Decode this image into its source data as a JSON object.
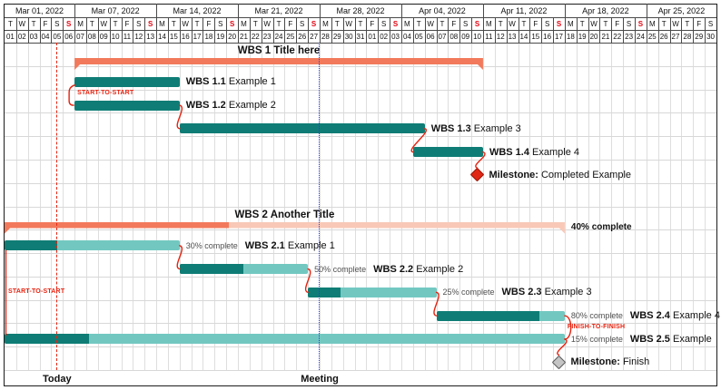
{
  "chart_data": {
    "type": "gantt",
    "timeline": {
      "days": 61,
      "start_date": "Mar 01, 2022",
      "end_date": "Apr 30, 2022",
      "weeks": [
        {
          "label": "Mar 01, 2022",
          "days": 6
        },
        {
          "label": "Mar 07, 2022",
          "days": 7
        },
        {
          "label": "Mar 14, 2022",
          "days": 7
        },
        {
          "label": "Mar 21, 2022",
          "days": 7
        },
        {
          "label": "Mar 28, 2022",
          "days": 7
        },
        {
          "label": "Apr 04, 2022",
          "days": 7
        },
        {
          "label": "Apr 11, 2022",
          "days": 7
        },
        {
          "label": "Apr 18, 2022",
          "days": 7
        },
        {
          "label": "Apr 25, 2022",
          "days": 6
        }
      ],
      "day_letters": [
        "T",
        "W",
        "T",
        "F",
        "S",
        "S",
        "M",
        "T",
        "W",
        "T",
        "F",
        "S",
        "S",
        "M",
        "T",
        "W",
        "T",
        "F",
        "S",
        "S",
        "M",
        "T",
        "W",
        "T",
        "F",
        "S",
        "S",
        "M",
        "T",
        "W",
        "T",
        "F",
        "S",
        "S",
        "M",
        "T",
        "W",
        "T",
        "F",
        "S",
        "S",
        "M",
        "T",
        "W",
        "T",
        "F",
        "S",
        "S",
        "M",
        "T",
        "W",
        "T",
        "F",
        "S",
        "S",
        "M",
        "T",
        "W",
        "T",
        "F",
        "S"
      ],
      "day_numbers": [
        "01",
        "02",
        "03",
        "04",
        "05",
        "06",
        "07",
        "08",
        "09",
        "10",
        "11",
        "12",
        "13",
        "14",
        "15",
        "16",
        "17",
        "18",
        "19",
        "20",
        "21",
        "22",
        "23",
        "24",
        "25",
        "26",
        "27",
        "28",
        "29",
        "30",
        "31",
        "01",
        "02",
        "03",
        "04",
        "05",
        "06",
        "07",
        "08",
        "09",
        "10",
        "11",
        "12",
        "13",
        "14",
        "15",
        "16",
        "17",
        "18",
        "19",
        "20",
        "21",
        "22",
        "23",
        "24",
        "25",
        "26",
        "27",
        "28",
        "29",
        "30"
      ],
      "sunday_indices": [
        5,
        12,
        19,
        26,
        33,
        40,
        47,
        54
      ]
    },
    "markers": {
      "today": {
        "label": "Today",
        "day": 4.5
      },
      "meeting": {
        "label": "Meeting",
        "day": 27
      }
    },
    "rows": [
      {
        "kind": "group",
        "row": 0,
        "name": "wbs-1",
        "title": "WBS 1 Title here",
        "start": 6,
        "end": 41
      },
      {
        "kind": "task",
        "row": 1,
        "name": "wbs-1-1",
        "bold": "WBS 1.1",
        "text": "Example 1",
        "start": 6,
        "end": 15
      },
      {
        "kind": "task",
        "row": 2,
        "name": "wbs-1-2",
        "bold": "WBS 1.2",
        "text": "Example 2",
        "start": 6,
        "end": 15
      },
      {
        "kind": "task",
        "row": 3,
        "name": "wbs-1-3",
        "bold": "WBS 1.3",
        "text": "Example 3",
        "start": 15,
        "end": 36
      },
      {
        "kind": "task",
        "row": 4,
        "name": "wbs-1-4",
        "bold": "WBS 1.4",
        "text": "Example 4",
        "start": 35,
        "end": 41
      },
      {
        "kind": "milestone",
        "row": 5,
        "name": "milestone-completed",
        "bold": "Milestone:",
        "text": "Completed Example",
        "day": 40.5,
        "style": "completed"
      },
      {
        "kind": "group",
        "row": 7,
        "name": "wbs-2",
        "title": "WBS 2 Another Title",
        "start": 0,
        "end": 48,
        "percent": 40,
        "percent_label": "40% complete"
      },
      {
        "kind": "task",
        "row": 8,
        "name": "wbs-2-1",
        "bold": "WBS 2.1",
        "text": "Example 1",
        "start": 0,
        "end": 15,
        "percent": 30,
        "percent_label": "30% complete"
      },
      {
        "kind": "task",
        "row": 9,
        "name": "wbs-2-2",
        "bold": "WBS 2.2",
        "text": "Example 2",
        "start": 15,
        "end": 26,
        "percent": 50,
        "percent_label": "50% complete"
      },
      {
        "kind": "task",
        "row": 10,
        "name": "wbs-2-3",
        "bold": "WBS 2.3",
        "text": "Example 3",
        "start": 26,
        "end": 37,
        "percent": 25,
        "percent_label": "25% complete"
      },
      {
        "kind": "task",
        "row": 11,
        "name": "wbs-2-4",
        "bold": "WBS 2.4",
        "text": "Example 4",
        "start": 37,
        "end": 48,
        "percent": 80,
        "percent_label": "80% complete"
      },
      {
        "kind": "task",
        "row": 12,
        "name": "wbs-2-5",
        "bold": "WBS 2.5",
        "text": "Example",
        "start": 0,
        "end": 48,
        "percent": 15,
        "percent_label": "15% complete"
      },
      {
        "kind": "milestone",
        "row": 13,
        "name": "milestone-finish",
        "bold": "Milestone:",
        "text": "Finish",
        "day": 47.5,
        "style": "finish"
      }
    ],
    "links": [
      {
        "type": "start-start",
        "from": 1,
        "to": 2,
        "label": "START-TO-START"
      },
      {
        "type": "end-start",
        "from": 2,
        "to": 3
      },
      {
        "type": "end-start",
        "from": 3,
        "to": 4
      },
      {
        "type": "end-milestone",
        "from": 4,
        "to": 5
      },
      {
        "type": "end-start",
        "from": 7,
        "to": 8
      },
      {
        "type": "end-start",
        "from": 8,
        "to": 9
      },
      {
        "type": "end-start",
        "from": 9,
        "to": 10
      },
      {
        "type": "finish-finish",
        "from": 10,
        "to": 11,
        "label": "FINISH-TO-FINISH"
      },
      {
        "type": "end-milestone",
        "from": 11,
        "to": 12
      },
      {
        "type": "start-start-long",
        "from": 7,
        "to": 11,
        "label": "START-TO-START"
      }
    ],
    "colors": {
      "group_fill": "#f2795b",
      "group_light": "#f9c8b7",
      "bar_fill": "#0f7d75",
      "bar_light": "#72c8c1",
      "milestone_red": "#e02715",
      "milestone_red_border": "#9c1507",
      "milestone_gray": "#c4c4c4",
      "milestone_gray_border": "#5a5a5a",
      "link": "#e62310",
      "today_line": "#e62310",
      "meeting_line": "#2b3cd4",
      "sunday": "#e30613"
    }
  }
}
